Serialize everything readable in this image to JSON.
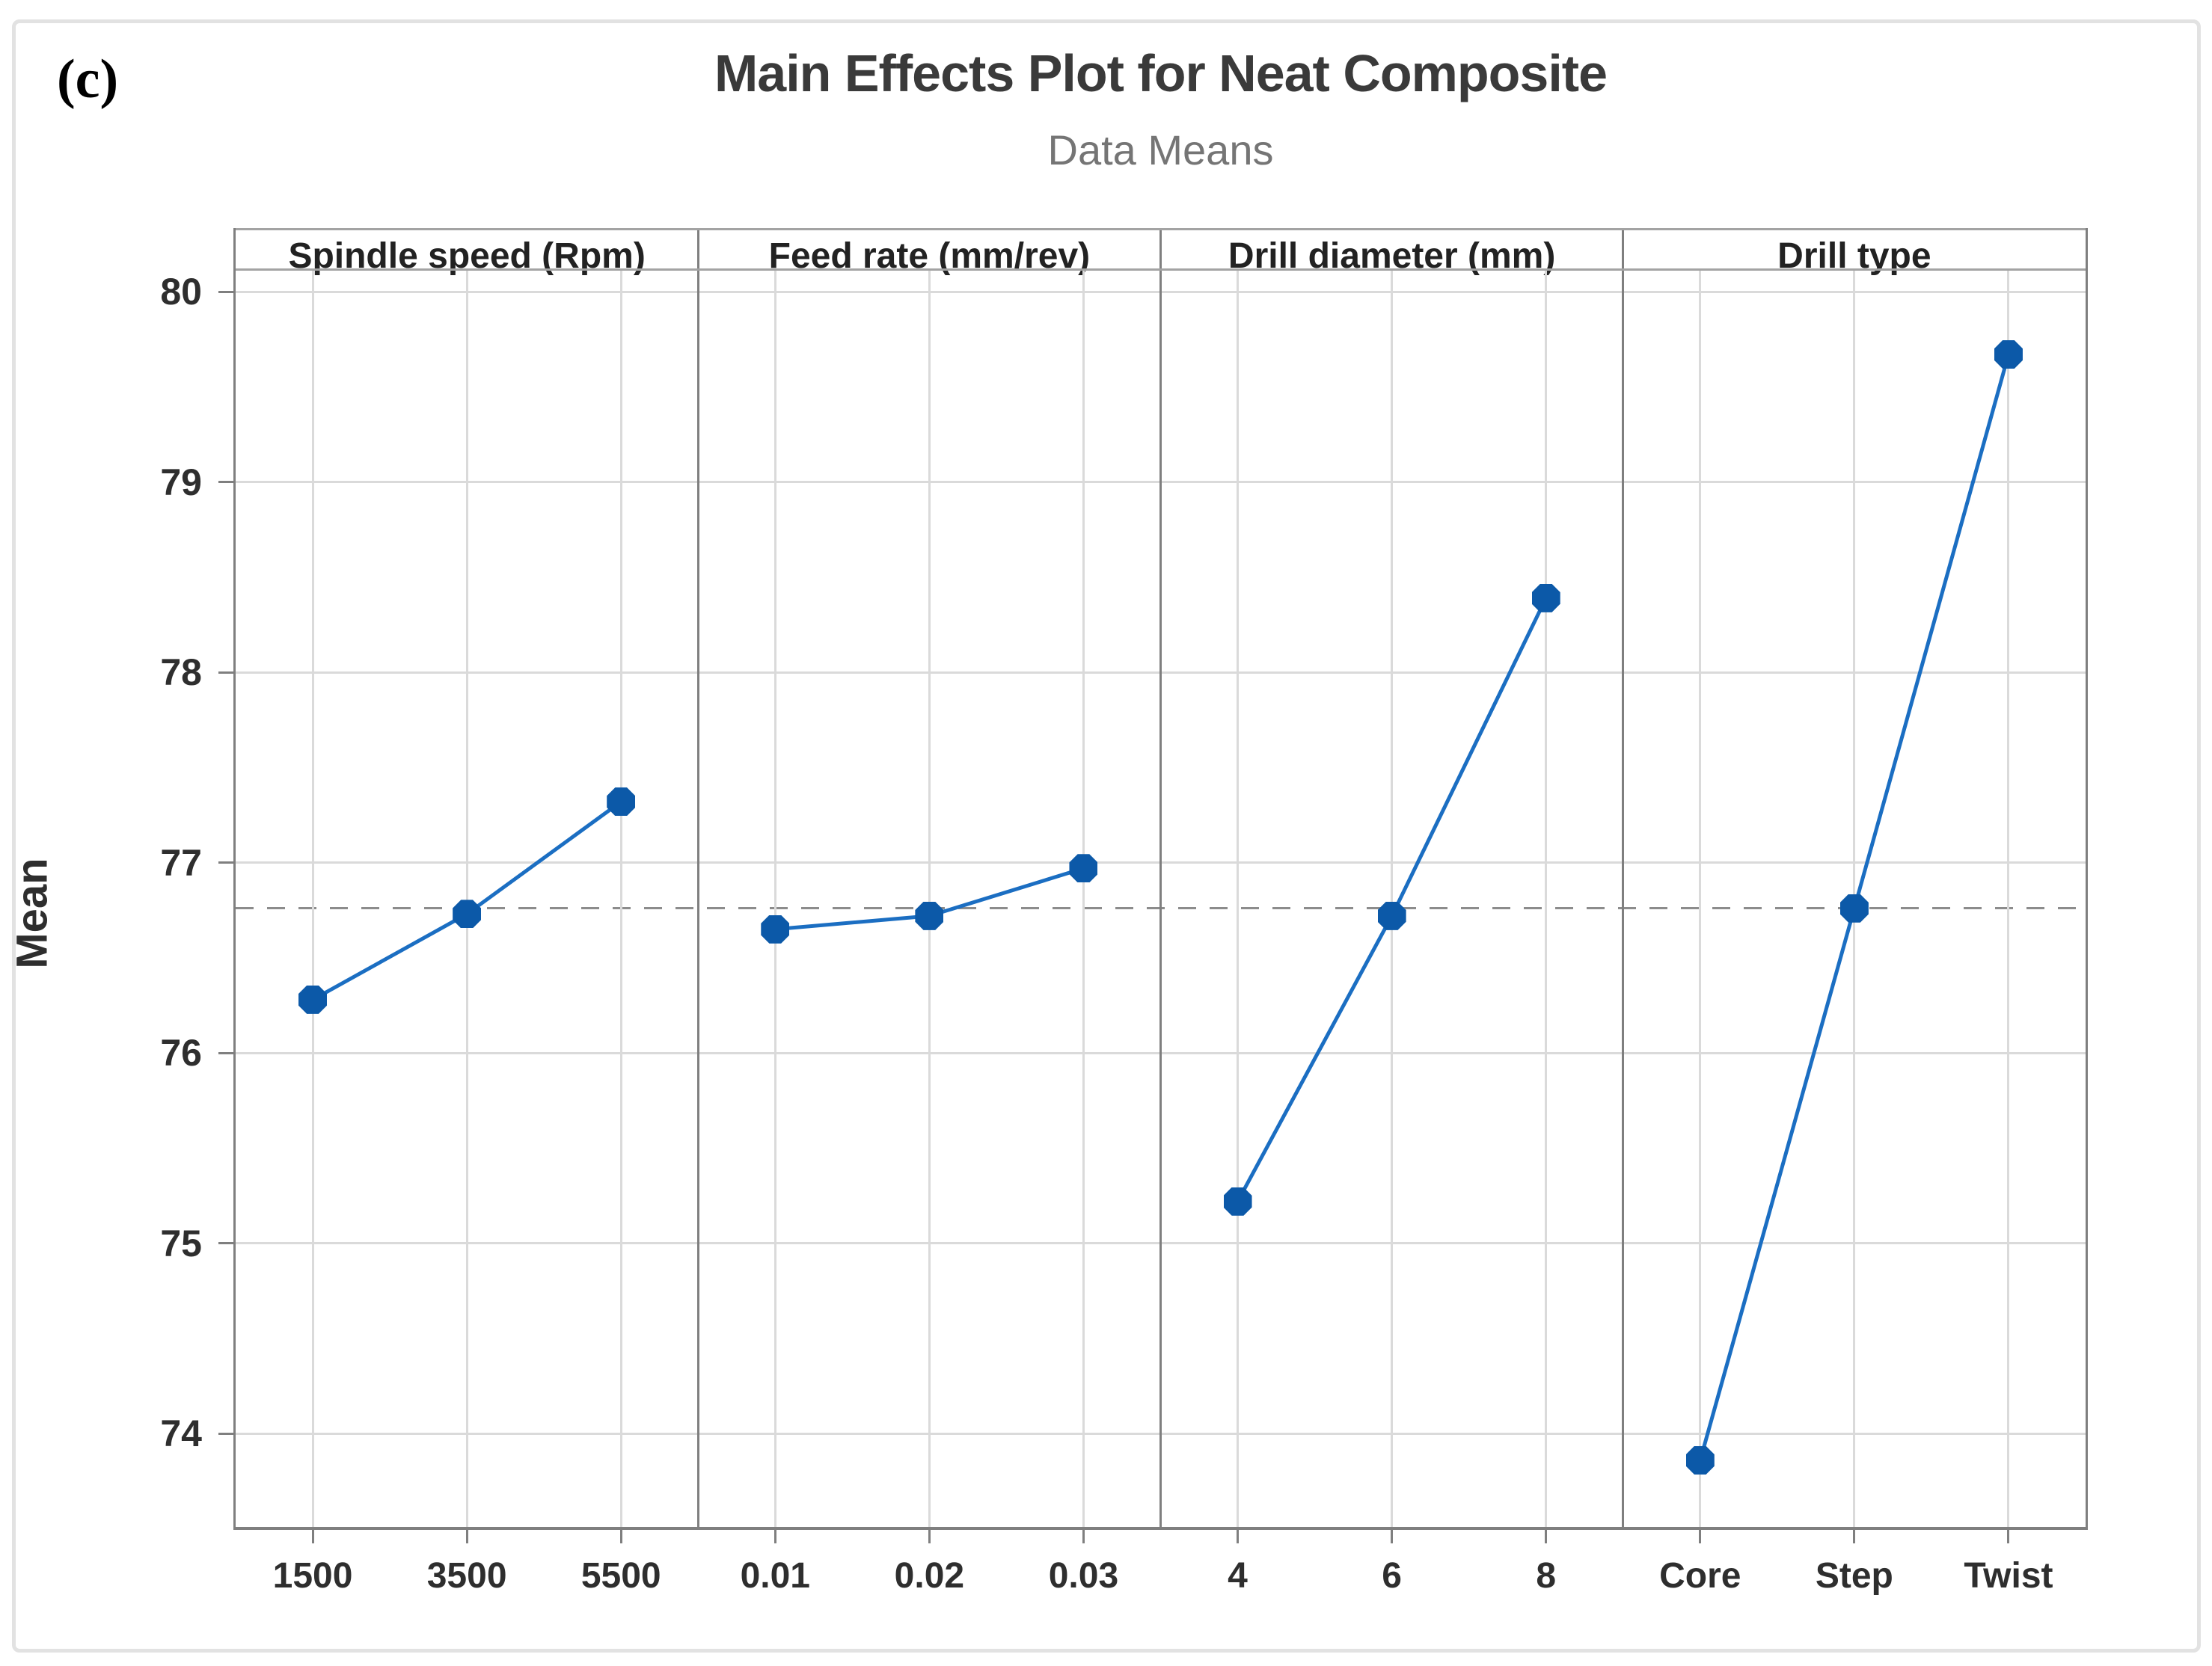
{
  "figure": {
    "corner_label": "(c)",
    "title": "Main Effects Plot for Neat Composite",
    "subtitle": "Data Means",
    "ylabel": "Mean"
  },
  "colors": {
    "line": "#1b6ec2",
    "marker": "#0c59a8",
    "gridline": "#dadada",
    "frame": "#7f7f7f",
    "mean_line": "#8c8c8c",
    "title_text": "#3a3a3a",
    "subtitle_text": "#757575"
  },
  "chart_data": {
    "type": "line",
    "title": "Main Effects Plot for Neat Composite",
    "subtitle": "Data Means",
    "ylabel": "Mean",
    "grand_mean": 76.76,
    "yticks": [
      74,
      75,
      76,
      77,
      78,
      79,
      80
    ],
    "ylim": [
      73.51,
      80.11
    ],
    "grid": true,
    "panels": [
      {
        "header": "Spindle speed (Rpm)",
        "categories": [
          "1500",
          "3500",
          "5500"
        ],
        "values": [
          76.28,
          76.73,
          77.32
        ]
      },
      {
        "header": "Feed rate (mm/rev)",
        "categories": [
          "0.01",
          "0.02",
          "0.03"
        ],
        "values": [
          76.65,
          76.72,
          76.97
        ]
      },
      {
        "header": "Drill diameter (mm)",
        "categories": [
          "4",
          "6",
          "8"
        ],
        "values": [
          75.22,
          76.72,
          78.39
        ]
      },
      {
        "header": "Drill type",
        "categories": [
          "Core",
          "Step",
          "Twist"
        ],
        "values": [
          73.86,
          76.76,
          79.67
        ]
      }
    ]
  }
}
